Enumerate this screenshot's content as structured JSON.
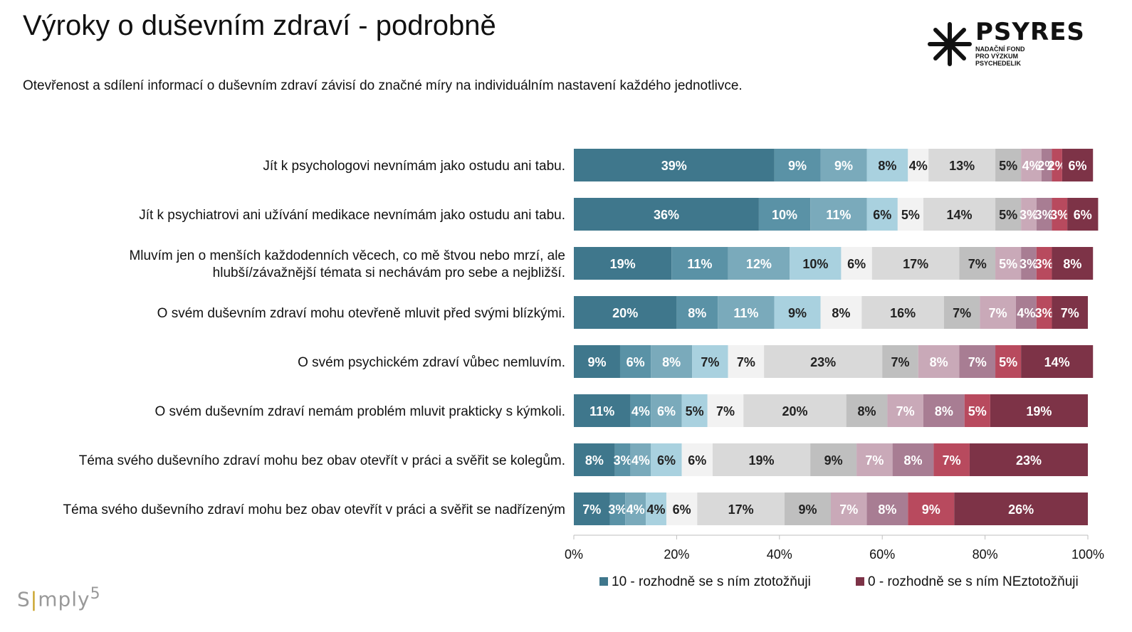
{
  "title": "Výroky o duševním zdraví - podrobně",
  "subtitle": "Otevřenost a sdílení informací o duševním zdraví závisí  do značné míry na individuálním nastavení každého jednotlivce.",
  "logo": {
    "name": "PSYRES",
    "lines": [
      "NADAČNÍ FOND",
      "PRO VÝZKUM",
      "PSYCHEDELIK"
    ]
  },
  "footer_brand": {
    "prefix": "S",
    "mid": "mply",
    "sup": "5"
  },
  "colors": [
    "#3f778c",
    "#5a92a6",
    "#7aaabb",
    "#a9d1df",
    "#f2f2f2",
    "#d9d9d9",
    "#bfbfbf",
    "#c9a9b8",
    "#a87d93",
    "#b84a5e",
    "#7d3347"
  ],
  "chart_data": {
    "type": "bar",
    "orientation": "horizontal",
    "stacked": true,
    "categories": [
      "Jít k psychologovi nevnímám jako ostudu ani tabu.",
      "Jít k psychiatrovi ani užívání medikace nevnímám jako ostudu ani tabu.",
      "Mluvím jen o menších každodenních věcech, co mě štvou nebo mrzí, ale hlubší/závažnější témata si nechávám pro sebe a nejbližší.",
      "O svém duševním zdraví mohu otevřeně mluvit před svými blízkými.",
      "O svém psychickém zdraví vůbec nemluvím.",
      "O svém duševním zdraví nemám problém mluvit prakticky s kýmkoli.",
      "Téma svého duševního zdraví mohu bez obav otevřít v práci a svěřit se kolegům.",
      "Téma svého duševního zdraví mohu bez obav otevřít v práci a svěřit se nadřízeným"
    ],
    "category_lines": [
      [
        "Jít k psychologovi nevnímám jako ostudu ani tabu."
      ],
      [
        "Jít k psychiatrovi ani užívání medikace nevnímám jako ostudu ani tabu."
      ],
      [
        "Mluvím jen o menších každodenních věcech, co mě štvou nebo mrzí, ale",
        "hlubší/závažnější témata si nechávám pro sebe a nejbližší."
      ],
      [
        "O svém duševním zdraví mohu otevřeně mluvit před svými blízkými."
      ],
      [
        "O svém psychickém zdraví vůbec nemluvím."
      ],
      [
        "O svém duševním zdraví nemám problém mluvit prakticky s kýmkoli."
      ],
      [
        "Téma svého duševního zdraví mohu bez obav otevřít v práci a svěřit se kolegům."
      ],
      [
        "Téma svého duševního zdraví mohu bez obav otevřít v práci a svěřit se nadřízeným"
      ]
    ],
    "series": [
      {
        "name": "10 - rozhodně se s ním ztotožňuji",
        "values": [
          39,
          36,
          19,
          20,
          9,
          11,
          8,
          7
        ]
      },
      {
        "name": "",
        "values": [
          9,
          10,
          11,
          8,
          6,
          4,
          3,
          3
        ]
      },
      {
        "name": "",
        "values": [
          9,
          11,
          12,
          11,
          8,
          6,
          4,
          4
        ]
      },
      {
        "name": "",
        "values": [
          8,
          6,
          10,
          9,
          7,
          5,
          6,
          4
        ]
      },
      {
        "name": "",
        "values": [
          4,
          5,
          6,
          8,
          7,
          7,
          6,
          6
        ]
      },
      {
        "name": "",
        "values": [
          13,
          14,
          17,
          16,
          23,
          20,
          19,
          17
        ]
      },
      {
        "name": "",
        "values": [
          5,
          5,
          7,
          7,
          7,
          8,
          9,
          9
        ]
      },
      {
        "name": "",
        "values": [
          4,
          3,
          5,
          7,
          8,
          7,
          7,
          7
        ]
      },
      {
        "name": "",
        "values": [
          2,
          3,
          3,
          4,
          7,
          8,
          8,
          8
        ]
      },
      {
        "name": "",
        "values": [
          2,
          3,
          3,
          3,
          5,
          5,
          7,
          9
        ]
      },
      {
        "name": "0 - rozhodně se s ním NEztotožňuji",
        "values": [
          6,
          6,
          8,
          7,
          14,
          19,
          23,
          26
        ]
      }
    ],
    "value_format": "{v}%",
    "xlim": [
      0,
      100
    ],
    "xticks": [
      0,
      20,
      40,
      60,
      80,
      100
    ],
    "xtick_labels": [
      "0%",
      "20%",
      "40%",
      "60%",
      "80%",
      "100%"
    ],
    "legend": {
      "placement": "bottom-right",
      "entries": [
        {
          "series_index": 0,
          "label": "10 - rozhodně se s ním ztotožňuji"
        },
        {
          "series_index": 10,
          "label": "0 - rozhodně se s ním NEztotožňuji"
        }
      ]
    },
    "grid": false
  }
}
